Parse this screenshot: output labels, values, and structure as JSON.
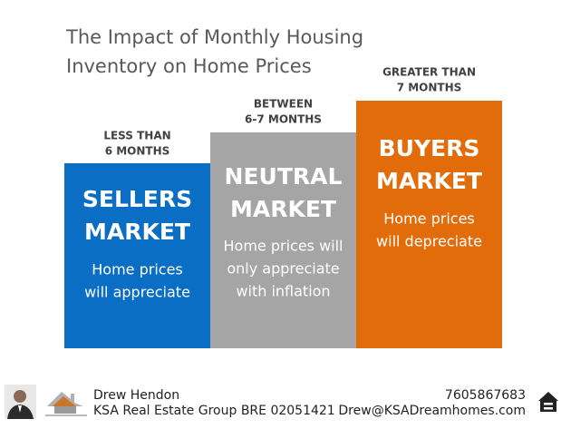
{
  "header": {
    "title": [
      "The Impact of Monthly Housing",
      "Inventory on Home Prices"
    ]
  },
  "columns": [
    {
      "label": [
        "LESS THAN",
        "6 MONTHS"
      ],
      "heading": [
        "SELLERS",
        "MARKET"
      ],
      "text": [
        "Home prices",
        "will appreciate"
      ],
      "color": "#0a6fc4"
    },
    {
      "label": [
        "BETWEEN",
        "6-7 MONTHS"
      ],
      "heading": [
        "NEUTRAL",
        "MARKET"
      ],
      "text": [
        "Home prices will",
        "only appreciate",
        "with inflation"
      ],
      "color": "#a5a5a5"
    },
    {
      "label": [
        "GREATER THAN",
        "7 MONTHS"
      ],
      "heading": [
        "BUYERS",
        "MARKET"
      ],
      "text": [
        "Home prices",
        "will depreciate"
      ],
      "color": "#e36c0a"
    }
  ],
  "footer": {
    "name": "Drew Hendon",
    "company": "KSA Real Estate Group BRE 02051421",
    "phone": "7605867683",
    "email": "Drew@KSADreamhomes.com"
  }
}
